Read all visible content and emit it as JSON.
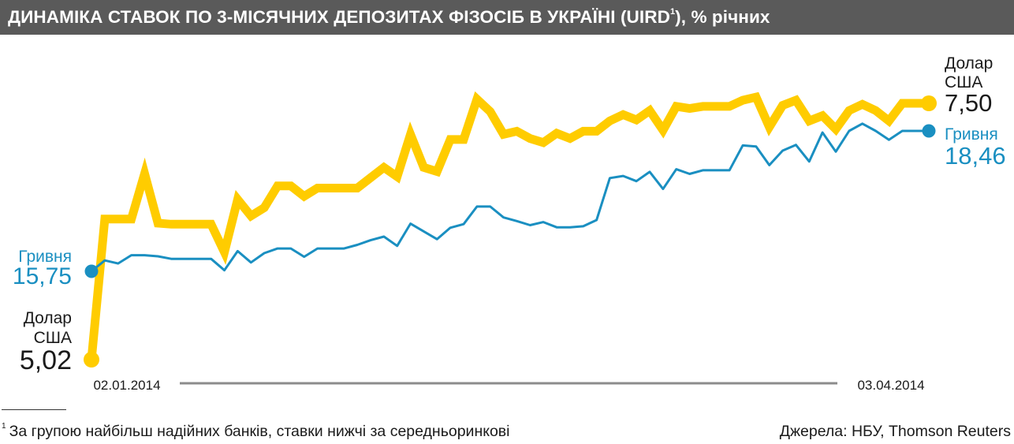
{
  "title": {
    "main": "ДИНАМІКА СТАВОК ПО 3-МІСЯЧНИХ ДЕПОЗИТАХ ФІЗОСІБ В УКРАЇНІ (UIRD",
    "sup": "1",
    "tail": "), % річних"
  },
  "colors": {
    "usd": "#ffcc00",
    "uah": "#1a8fc1",
    "title_bg": "#5a5a5a",
    "axis": "#8c8c8c"
  },
  "chart_data": {
    "type": "line",
    "title": "ДИНАМІКА СТАВОК ПО 3-МІСЯЧНИХ ДЕПОЗИТАХ ФІЗОСІБ В УКРАЇНІ (UIRD1), % річних",
    "x_start_label": "02.01.2014",
    "x_end_label": "03.04.2014",
    "grid": false,
    "legend": "inline labels at line ends",
    "series": [
      {
        "name": "Долар США",
        "key": "usd",
        "start_label": "5,02",
        "end_label": "7,50",
        "values": [
          5.02,
          6.38,
          6.38,
          6.38,
          6.82,
          6.34,
          6.33,
          6.33,
          6.33,
          6.33,
          6.06,
          6.57,
          6.41,
          6.49,
          6.7,
          6.7,
          6.6,
          6.68,
          6.68,
          6.68,
          6.68,
          6.78,
          6.88,
          6.79,
          7.2,
          6.88,
          6.84,
          7.15,
          7.15,
          7.54,
          7.42,
          7.2,
          7.23,
          7.16,
          7.12,
          7.21,
          7.16,
          7.23,
          7.23,
          7.33,
          7.39,
          7.34,
          7.43,
          7.24,
          7.47,
          7.45,
          7.47,
          7.47,
          7.47,
          7.53,
          7.56,
          7.27,
          7.48,
          7.53,
          7.33,
          7.38,
          7.25,
          7.43,
          7.49,
          7.43,
          7.33,
          7.5,
          7.5,
          7.5
        ]
      },
      {
        "name": "Гривня",
        "key": "uah",
        "start_label": "15,75",
        "end_label": "18,46",
        "values": [
          15.75,
          15.96,
          15.9,
          16.06,
          16.06,
          16.04,
          15.99,
          15.99,
          15.99,
          15.99,
          15.77,
          16.14,
          15.92,
          16.1,
          16.19,
          16.19,
          16.03,
          16.19,
          16.19,
          16.19,
          16.26,
          16.35,
          16.42,
          16.24,
          16.67,
          16.52,
          16.37,
          16.59,
          16.66,
          17.0,
          17.0,
          16.79,
          16.72,
          16.64,
          16.7,
          16.6,
          16.6,
          16.62,
          16.74,
          17.55,
          17.59,
          17.49,
          17.67,
          17.34,
          17.72,
          17.63,
          17.7,
          17.7,
          17.7,
          18.18,
          18.16,
          17.8,
          18.08,
          18.19,
          17.87,
          18.43,
          18.06,
          18.46,
          18.6,
          18.46,
          18.29,
          18.46,
          18.46,
          18.46
        ]
      }
    ]
  },
  "labels": {
    "usd_name_line1": "Долар",
    "usd_name_line2": "США",
    "uah_name": "Гривня"
  },
  "footnote": {
    "sup": "1",
    "text": "За групою найбільш надійних банків, ставки нижчі за середньоринкові"
  },
  "source": "Джерела: НБУ, Thomson Reuters"
}
